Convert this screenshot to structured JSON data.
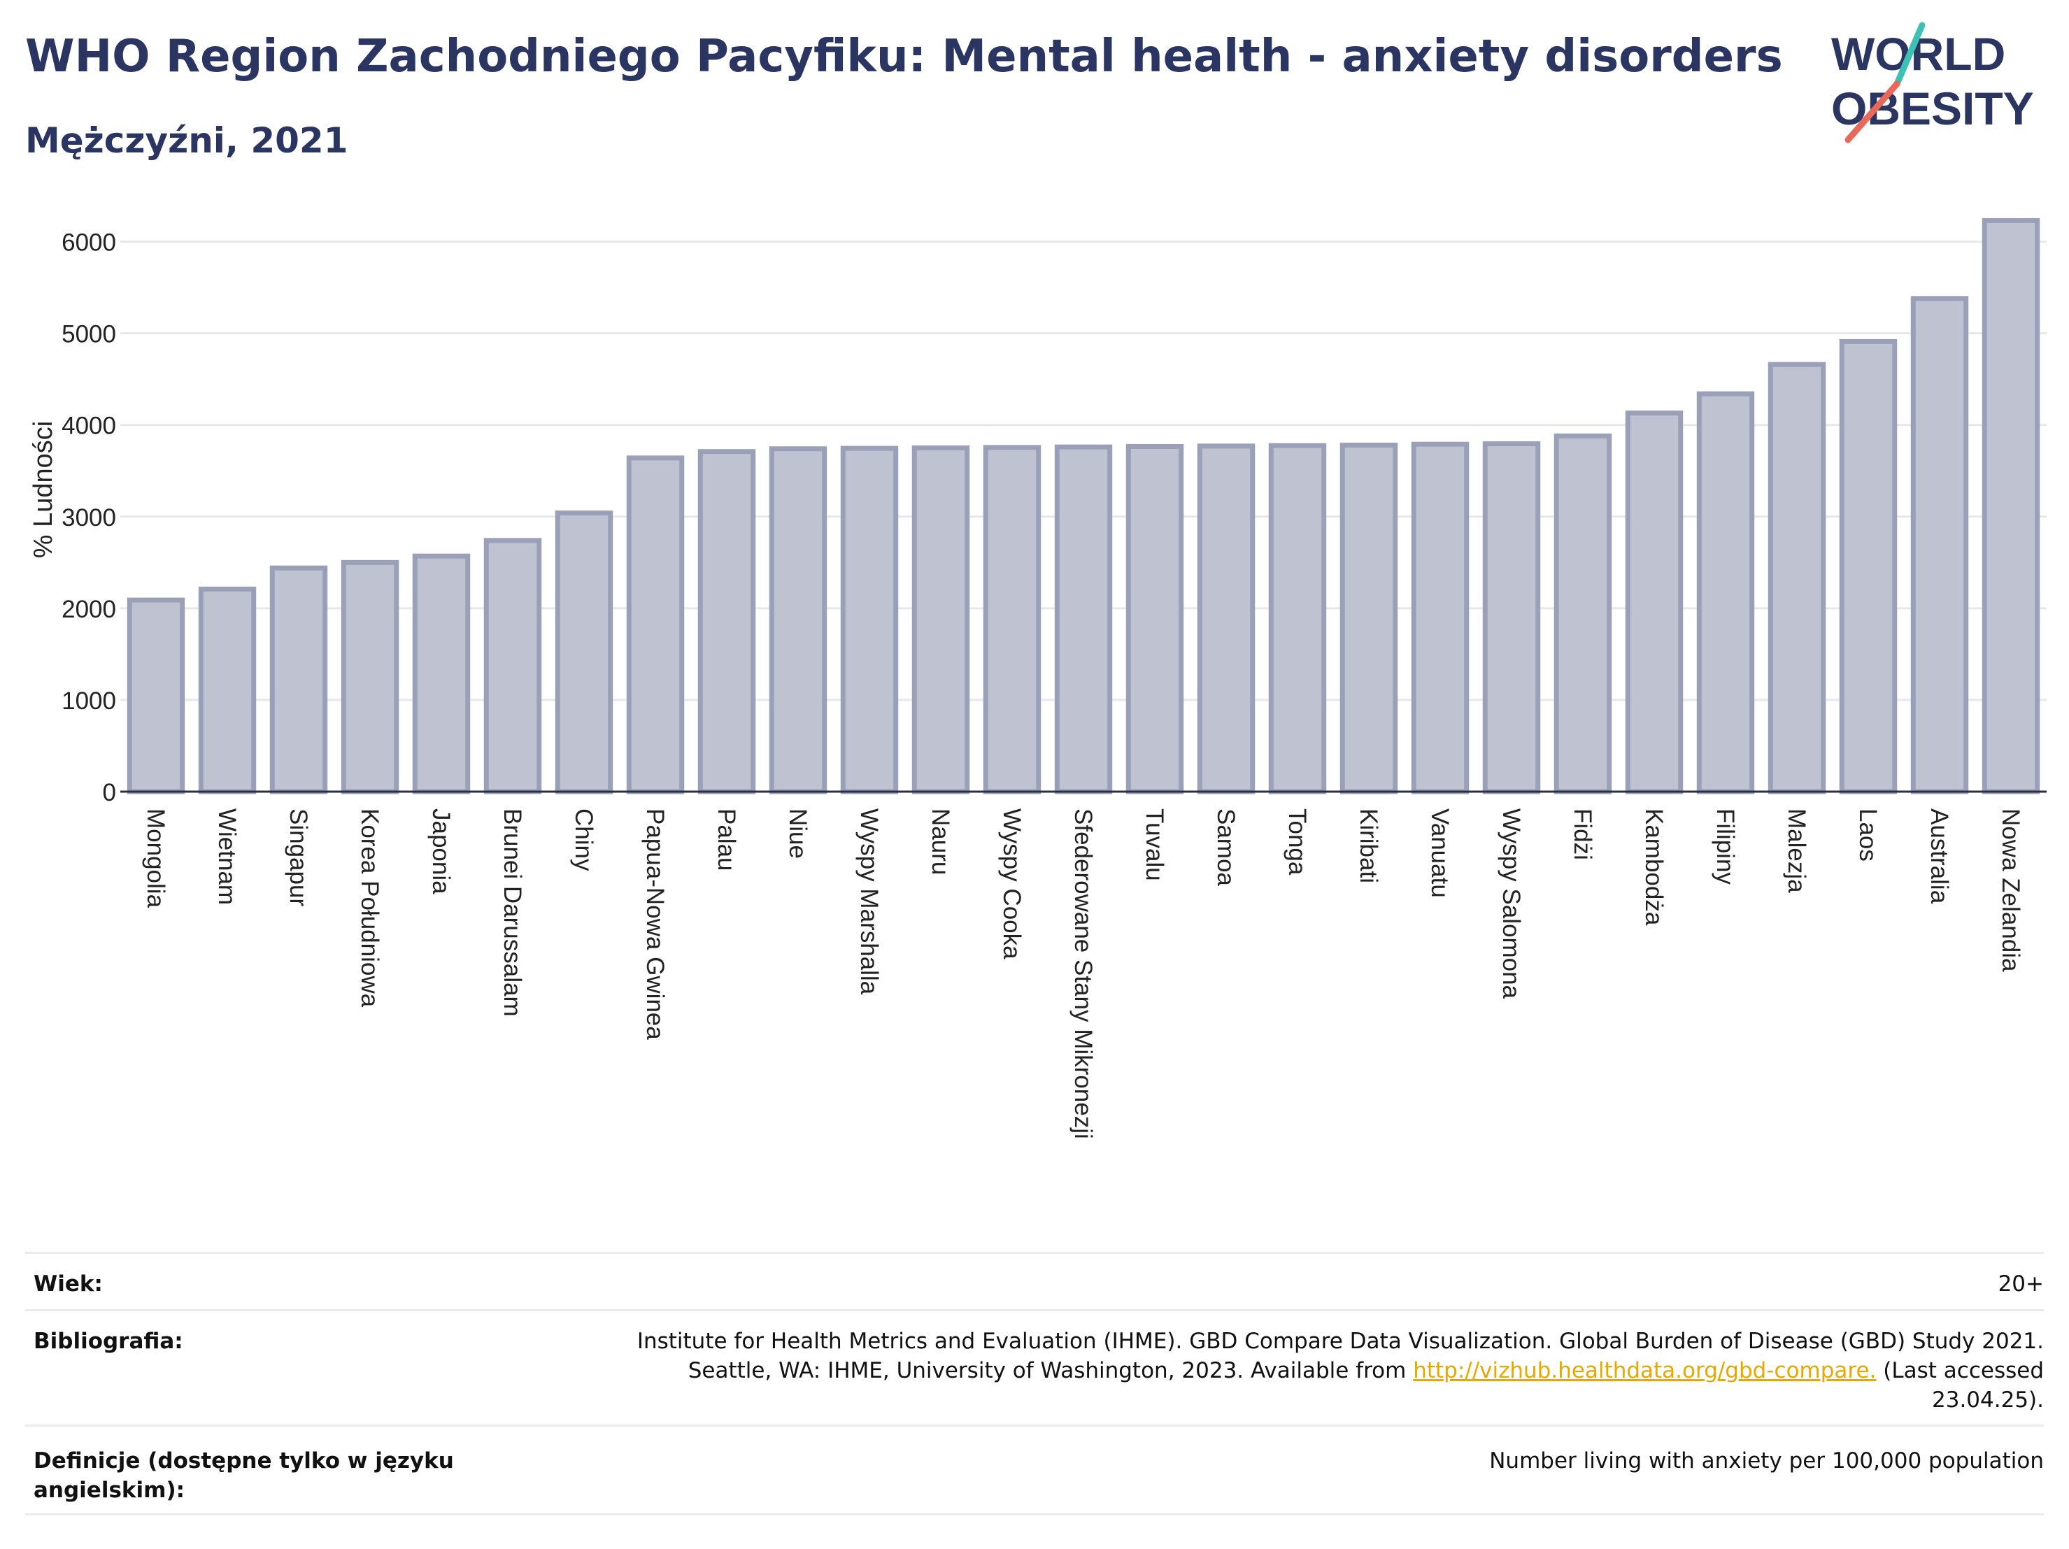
{
  "header": {
    "title": "WHO Region Zachodniego Pacyfiku: Mental health - anxiety disorders",
    "subtitle": "Mężczyźni, 2021",
    "logo_line1": "WORLD",
    "logo_line2": "OBESITY"
  },
  "colors": {
    "bar_fill": "#bfc3d1",
    "bar_stroke": "#9aa0b8",
    "title": "#2b3561",
    "logo_teal": "#3cc1b4",
    "logo_red": "#e8685a",
    "link": "#e8a800"
  },
  "chart_data": {
    "type": "bar",
    "ylabel": "% Ludności",
    "ylim": [
      0,
      6500
    ],
    "yticks": [
      0,
      1000,
      2000,
      3000,
      4000,
      5000,
      6000
    ],
    "grid": true,
    "categories": [
      "Mongolia",
      "Wietnam",
      "Singapur",
      "Korea Południowa",
      "Japonia",
      "Brunei Darussalam",
      "Chiny",
      "Papua-Nowa Gwinea",
      "Palau",
      "Niue",
      "Wyspy Marshalla",
      "Nauru",
      "Wyspy Cooka",
      "Sfederowane Stany Mikronezji",
      "Tuvalu",
      "Samoa",
      "Tonga",
      "Kiribati",
      "Vanuatu",
      "Wyspy Salomona",
      "Fidżi",
      "Kambodża",
      "Filipiny",
      "Malezja",
      "Laos",
      "Australia",
      "Nowa Zelandia"
    ],
    "values": [
      2090,
      2210,
      2440,
      2500,
      2570,
      2740,
      3040,
      3640,
      3710,
      3740,
      3745,
      3750,
      3755,
      3760,
      3765,
      3770,
      3775,
      3780,
      3790,
      3795,
      3880,
      4130,
      4340,
      4660,
      4910,
      5380,
      6230
    ]
  },
  "info": {
    "age_label": "Wiek:",
    "age_value": "20+",
    "bib_label": "Bibliografia:",
    "bib_line1": "Institute for Health Metrics and Evaluation (IHME). GBD Compare Data Visualization. Global Burden of Disease (GBD) Study 2021.",
    "bib_line2_pre": "Seattle, WA: IHME, University of Washington, 2023. Available from ",
    "bib_link": "http://vizhub.healthdata.org/gbd-compare.",
    "bib_line2_post": " (Last accessed",
    "bib_line3": "23.04.25).",
    "def_label": "Definicje (dostępne tylko w języku angielskim):",
    "def_value": "Number living with anxiety per 100,000 population"
  }
}
